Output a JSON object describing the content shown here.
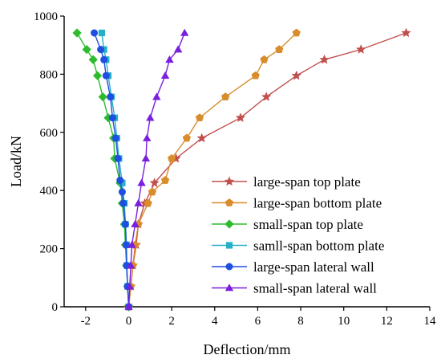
{
  "chart_data": {
    "type": "line",
    "title": "",
    "xlabel": "Deflection/mm",
    "ylabel": "Load/kN",
    "xlim": [
      -3,
      14
    ],
    "ylim": [
      0,
      1000
    ],
    "xticks": [
      -2,
      0,
      2,
      4,
      6,
      8,
      10,
      12,
      14
    ],
    "yticks": [
      0,
      200,
      400,
      600,
      800,
      1000
    ],
    "grid": false,
    "legend_position": "lower-right",
    "series": [
      {
        "name": "large-span top plate",
        "color": "#C0504D",
        "marker": "star",
        "points": [
          [
            0,
            0
          ],
          [
            0.1,
            70
          ],
          [
            0.2,
            142
          ],
          [
            0.35,
            213
          ],
          [
            0.45,
            284
          ],
          [
            0.75,
            356
          ],
          [
            1.2,
            426
          ],
          [
            2.2,
            510
          ],
          [
            3.4,
            580
          ],
          [
            5.2,
            650
          ],
          [
            6.4,
            722
          ],
          [
            7.8,
            795
          ],
          [
            9.1,
            850
          ],
          [
            10.8,
            885
          ],
          [
            12.9,
            942
          ]
        ]
      },
      {
        "name": "large-span bottom plate",
        "color": "#D98C2C",
        "marker": "pentagon",
        "points": [
          [
            0,
            0
          ],
          [
            0.1,
            70
          ],
          [
            0.2,
            142
          ],
          [
            0.3,
            213
          ],
          [
            0.45,
            284
          ],
          [
            0.9,
            356
          ],
          [
            1.1,
            395
          ],
          [
            1.7,
            435
          ],
          [
            2.0,
            510
          ],
          [
            2.7,
            580
          ],
          [
            3.3,
            650
          ],
          [
            4.5,
            722
          ],
          [
            5.9,
            795
          ],
          [
            6.3,
            850
          ],
          [
            7.0,
            885
          ],
          [
            7.8,
            942
          ]
        ]
      },
      {
        "name": "small-span top plate",
        "color": "#2DBB2D",
        "marker": "diamond",
        "points": [
          [
            0,
            0
          ],
          [
            -0.05,
            70
          ],
          [
            -0.1,
            142
          ],
          [
            -0.15,
            213
          ],
          [
            -0.2,
            284
          ],
          [
            -0.3,
            356
          ],
          [
            -0.4,
            426
          ],
          [
            -0.65,
            510
          ],
          [
            -0.7,
            580
          ],
          [
            -0.95,
            650
          ],
          [
            -1.2,
            722
          ],
          [
            -1.45,
            795
          ],
          [
            -1.65,
            850
          ],
          [
            -1.95,
            885
          ],
          [
            -2.4,
            942
          ]
        ]
      },
      {
        "name": "samll-span bottom plate",
        "color": "#26B0C8",
        "marker": "square",
        "points": [
          [
            0,
            0
          ],
          [
            -0.05,
            70
          ],
          [
            -0.08,
            142
          ],
          [
            -0.1,
            213
          ],
          [
            -0.15,
            284
          ],
          [
            -0.2,
            356
          ],
          [
            -0.3,
            426
          ],
          [
            -0.45,
            510
          ],
          [
            -0.55,
            580
          ],
          [
            -0.65,
            650
          ],
          [
            -0.8,
            722
          ],
          [
            -0.95,
            795
          ],
          [
            -1.05,
            850
          ],
          [
            -1.15,
            885
          ],
          [
            -1.25,
            942
          ]
        ]
      },
      {
        "name": "large-span lateral wall",
        "color": "#1F4FE0",
        "marker": "circle",
        "points": [
          [
            0,
            0
          ],
          [
            -0.05,
            70
          ],
          [
            -0.1,
            142
          ],
          [
            -0.12,
            213
          ],
          [
            -0.15,
            284
          ],
          [
            -0.25,
            356
          ],
          [
            -0.3,
            395
          ],
          [
            -0.4,
            435
          ],
          [
            -0.5,
            510
          ],
          [
            -0.6,
            580
          ],
          [
            -0.75,
            650
          ],
          [
            -0.85,
            722
          ],
          [
            -1.05,
            795
          ],
          [
            -1.15,
            850
          ],
          [
            -1.3,
            885
          ],
          [
            -1.6,
            942
          ]
        ]
      },
      {
        "name": "small-span lateral wall",
        "color": "#7A1FE0",
        "marker": "triangle",
        "points": [
          [
            0,
            0
          ],
          [
            0.05,
            70
          ],
          [
            0.1,
            142
          ],
          [
            0.15,
            213
          ],
          [
            0.3,
            284
          ],
          [
            0.45,
            356
          ],
          [
            0.6,
            426
          ],
          [
            0.8,
            510
          ],
          [
            0.85,
            580
          ],
          [
            1.0,
            650
          ],
          [
            1.3,
            722
          ],
          [
            1.7,
            795
          ],
          [
            1.9,
            850
          ],
          [
            2.3,
            885
          ],
          [
            2.6,
            942
          ]
        ]
      }
    ]
  }
}
